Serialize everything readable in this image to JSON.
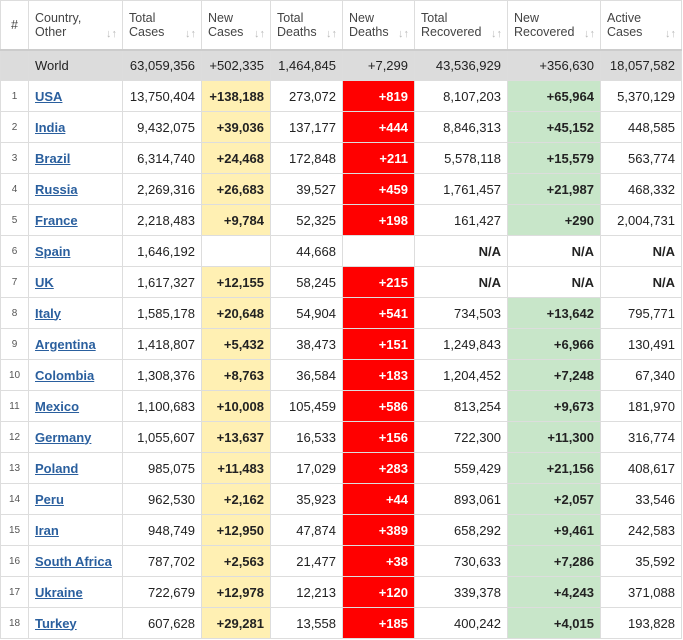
{
  "table": {
    "headers": [
      [
        "#"
      ],
      [
        "Country,",
        "Other"
      ],
      [
        "Total",
        "Cases"
      ],
      [
        "New",
        "Cases"
      ],
      [
        "Total",
        "Deaths"
      ],
      [
        "New",
        "Deaths"
      ],
      [
        "Total",
        "Recovered"
      ],
      [
        "New",
        "Recovered"
      ],
      [
        "Active",
        "Cases"
      ]
    ],
    "world": [
      "World",
      "63,059,356",
      "+502,335",
      "1,464,845",
      "+7,299",
      "43,536,929",
      "+356,630",
      "18,057,582"
    ],
    "rows": [
      [
        "1",
        "USA",
        "13,750,404",
        "+138,188",
        "273,072",
        "+819",
        "8,107,203",
        "+65,964",
        "5,370,129"
      ],
      [
        "2",
        "India",
        "9,432,075",
        "+39,036",
        "137,177",
        "+444",
        "8,846,313",
        "+45,152",
        "448,585"
      ],
      [
        "3",
        "Brazil",
        "6,314,740",
        "+24,468",
        "172,848",
        "+211",
        "5,578,118",
        "+15,579",
        "563,774"
      ],
      [
        "4",
        "Russia",
        "2,269,316",
        "+26,683",
        "39,527",
        "+459",
        "1,761,457",
        "+21,987",
        "468,332"
      ],
      [
        "5",
        "France",
        "2,218,483",
        "+9,784",
        "52,325",
        "+198",
        "161,427",
        "+290",
        "2,004,731"
      ],
      [
        "6",
        "Spain",
        "1,646,192",
        null,
        "44,668",
        null,
        "N/A",
        "N/A",
        "N/A"
      ],
      [
        "7",
        "UK",
        "1,617,327",
        "+12,155",
        "58,245",
        "+215",
        "N/A",
        "N/A",
        "N/A"
      ],
      [
        "8",
        "Italy",
        "1,585,178",
        "+20,648",
        "54,904",
        "+541",
        "734,503",
        "+13,642",
        "795,771"
      ],
      [
        "9",
        "Argentina",
        "1,418,807",
        "+5,432",
        "38,473",
        "+151",
        "1,249,843",
        "+6,966",
        "130,491"
      ],
      [
        "10",
        "Colombia",
        "1,308,376",
        "+8,763",
        "36,584",
        "+183",
        "1,204,452",
        "+7,248",
        "67,340"
      ],
      [
        "11",
        "Mexico",
        "1,100,683",
        "+10,008",
        "105,459",
        "+586",
        "813,254",
        "+9,673",
        "181,970"
      ],
      [
        "12",
        "Germany",
        "1,055,607",
        "+13,637",
        "16,533",
        "+156",
        "722,300",
        "+11,300",
        "316,774"
      ],
      [
        "13",
        "Poland",
        "985,075",
        "+11,483",
        "17,029",
        "+283",
        "559,429",
        "+21,156",
        "408,617"
      ],
      [
        "14",
        "Peru",
        "962,530",
        "+2,162",
        "35,923",
        "+44",
        "893,061",
        "+2,057",
        "33,546"
      ],
      [
        "15",
        "Iran",
        "948,749",
        "+12,950",
        "47,874",
        "+389",
        "658,292",
        "+9,461",
        "242,583"
      ],
      [
        "16",
        "South Africa",
        "787,702",
        "+2,563",
        "21,477",
        "+38",
        "730,633",
        "+7,286",
        "35,592"
      ],
      [
        "17",
        "Ukraine",
        "722,679",
        "+12,978",
        "12,213",
        "+120",
        "339,378",
        "+4,243",
        "371,088"
      ],
      [
        "18",
        "Turkey",
        "607,628",
        "+29,281",
        "13,558",
        "+185",
        "400,242",
        "+4,015",
        "193,828"
      ]
    ]
  }
}
